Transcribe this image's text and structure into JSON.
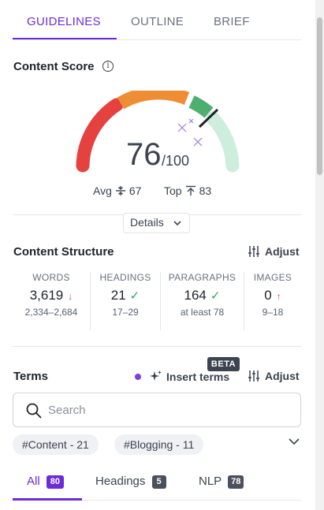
{
  "tabs": [
    {
      "label": "GUIDELINES",
      "active": true
    },
    {
      "label": "OUTLINE",
      "active": false
    },
    {
      "label": "BRIEF",
      "active": false
    }
  ],
  "content_score": {
    "title": "Content Score",
    "info_icon": "info-icon",
    "score": "76",
    "max": "/100",
    "score_value": 76,
    "avg_label": "Avg",
    "avg_value": "67",
    "top_label": "Top",
    "top_value": "83",
    "gauge_colors": {
      "low": "#e5413f",
      "mid": "#ef8d35",
      "high": "#4caf6e",
      "target": "#cdeedd"
    },
    "details_label": "Details"
  },
  "structure": {
    "title": "Content Structure",
    "adjust_label": "Adjust",
    "metrics": [
      {
        "label": "WORDS",
        "value": "3,619",
        "status": "down",
        "range": "2,334–2,684"
      },
      {
        "label": "HEADINGS",
        "value": "21",
        "status": "ok",
        "range": "17–29"
      },
      {
        "label": "PARAGRAPHS",
        "value": "164",
        "status": "ok",
        "range": "at least 78"
      },
      {
        "label": "IMAGES",
        "value": "0",
        "status": "up",
        "range": "9–18"
      }
    ]
  },
  "terms": {
    "title": "Terms",
    "insert_label": "Insert terms",
    "beta_label": "BETA",
    "adjust_label": "Adjust",
    "search_placeholder": "Search",
    "chips": [
      "#Content - 21",
      "#Blogging - 11"
    ],
    "tabs": [
      {
        "label": "All",
        "count": "80",
        "active": true
      },
      {
        "label": "Headings",
        "count": "5",
        "active": false
      },
      {
        "label": "NLP",
        "count": "78",
        "active": false
      }
    ]
  },
  "colors": {
    "accent": "#6c2bd9",
    "danger": "#d93c3c",
    "success": "#2fa35a"
  }
}
